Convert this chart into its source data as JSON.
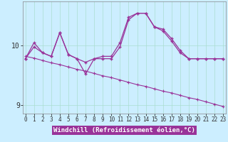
{
  "xlabel": "Windchill (Refroidissement éolien,°C)",
  "background_color": "#cceeff",
  "line_color": "#993399",
  "hours": [
    0,
    1,
    2,
    3,
    4,
    5,
    6,
    7,
    8,
    9,
    10,
    11,
    12,
    13,
    14,
    15,
    16,
    17,
    18,
    19,
    20,
    21,
    22,
    23
  ],
  "temp": [
    9.78,
    10.05,
    9.88,
    9.82,
    10.22,
    9.85,
    9.78,
    9.72,
    9.78,
    9.82,
    9.82,
    10.05,
    10.48,
    10.55,
    10.55,
    10.32,
    10.28,
    10.12,
    9.92,
    9.78,
    9.78,
    9.78,
    9.78,
    9.78
  ],
  "windchill": [
    9.78,
    9.98,
    9.88,
    9.82,
    10.22,
    9.85,
    9.78,
    9.52,
    9.78,
    9.78,
    9.78,
    9.98,
    10.44,
    10.55,
    10.55,
    10.32,
    10.25,
    10.08,
    9.88,
    9.78,
    9.78,
    9.78,
    9.78,
    9.78
  ],
  "linear": [
    9.82,
    9.79,
    9.75,
    9.71,
    9.68,
    9.64,
    9.6,
    9.57,
    9.53,
    9.49,
    9.46,
    9.42,
    9.38,
    9.34,
    9.31,
    9.27,
    9.23,
    9.2,
    9.16,
    9.12,
    9.09,
    9.05,
    9.01,
    8.97
  ],
  "ylim": [
    8.85,
    10.75
  ],
  "yticks": [
    9,
    10
  ],
  "grid_color": "#aaddd0",
  "xlabel_bg": "#993399",
  "xlabel_fg": "#ffffff"
}
